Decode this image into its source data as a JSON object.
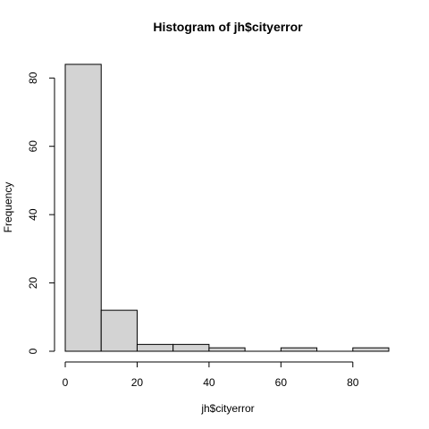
{
  "chart_data": {
    "type": "bar",
    "title": "Histogram of jh$cityerror",
    "xlabel": "jh$cityerror",
    "ylabel": "Frequency",
    "bins": [
      {
        "from": 0,
        "to": 10,
        "count": 84
      },
      {
        "from": 10,
        "to": 20,
        "count": 12
      },
      {
        "from": 20,
        "to": 30,
        "count": 2
      },
      {
        "from": 30,
        "to": 40,
        "count": 2
      },
      {
        "from": 40,
        "to": 50,
        "count": 1
      },
      {
        "from": 50,
        "to": 60,
        "count": 0
      },
      {
        "from": 60,
        "to": 70,
        "count": 1
      },
      {
        "from": 70,
        "to": 80,
        "count": 0
      },
      {
        "from": 80,
        "to": 90,
        "count": 1
      }
    ],
    "xlim": [
      0,
      90
    ],
    "ylim": [
      0,
      84
    ],
    "xticks": [
      0,
      20,
      40,
      60,
      80
    ],
    "yticks": [
      0,
      20,
      40,
      60,
      80
    ],
    "bar_color": "#d3d3d3",
    "grid": false
  }
}
